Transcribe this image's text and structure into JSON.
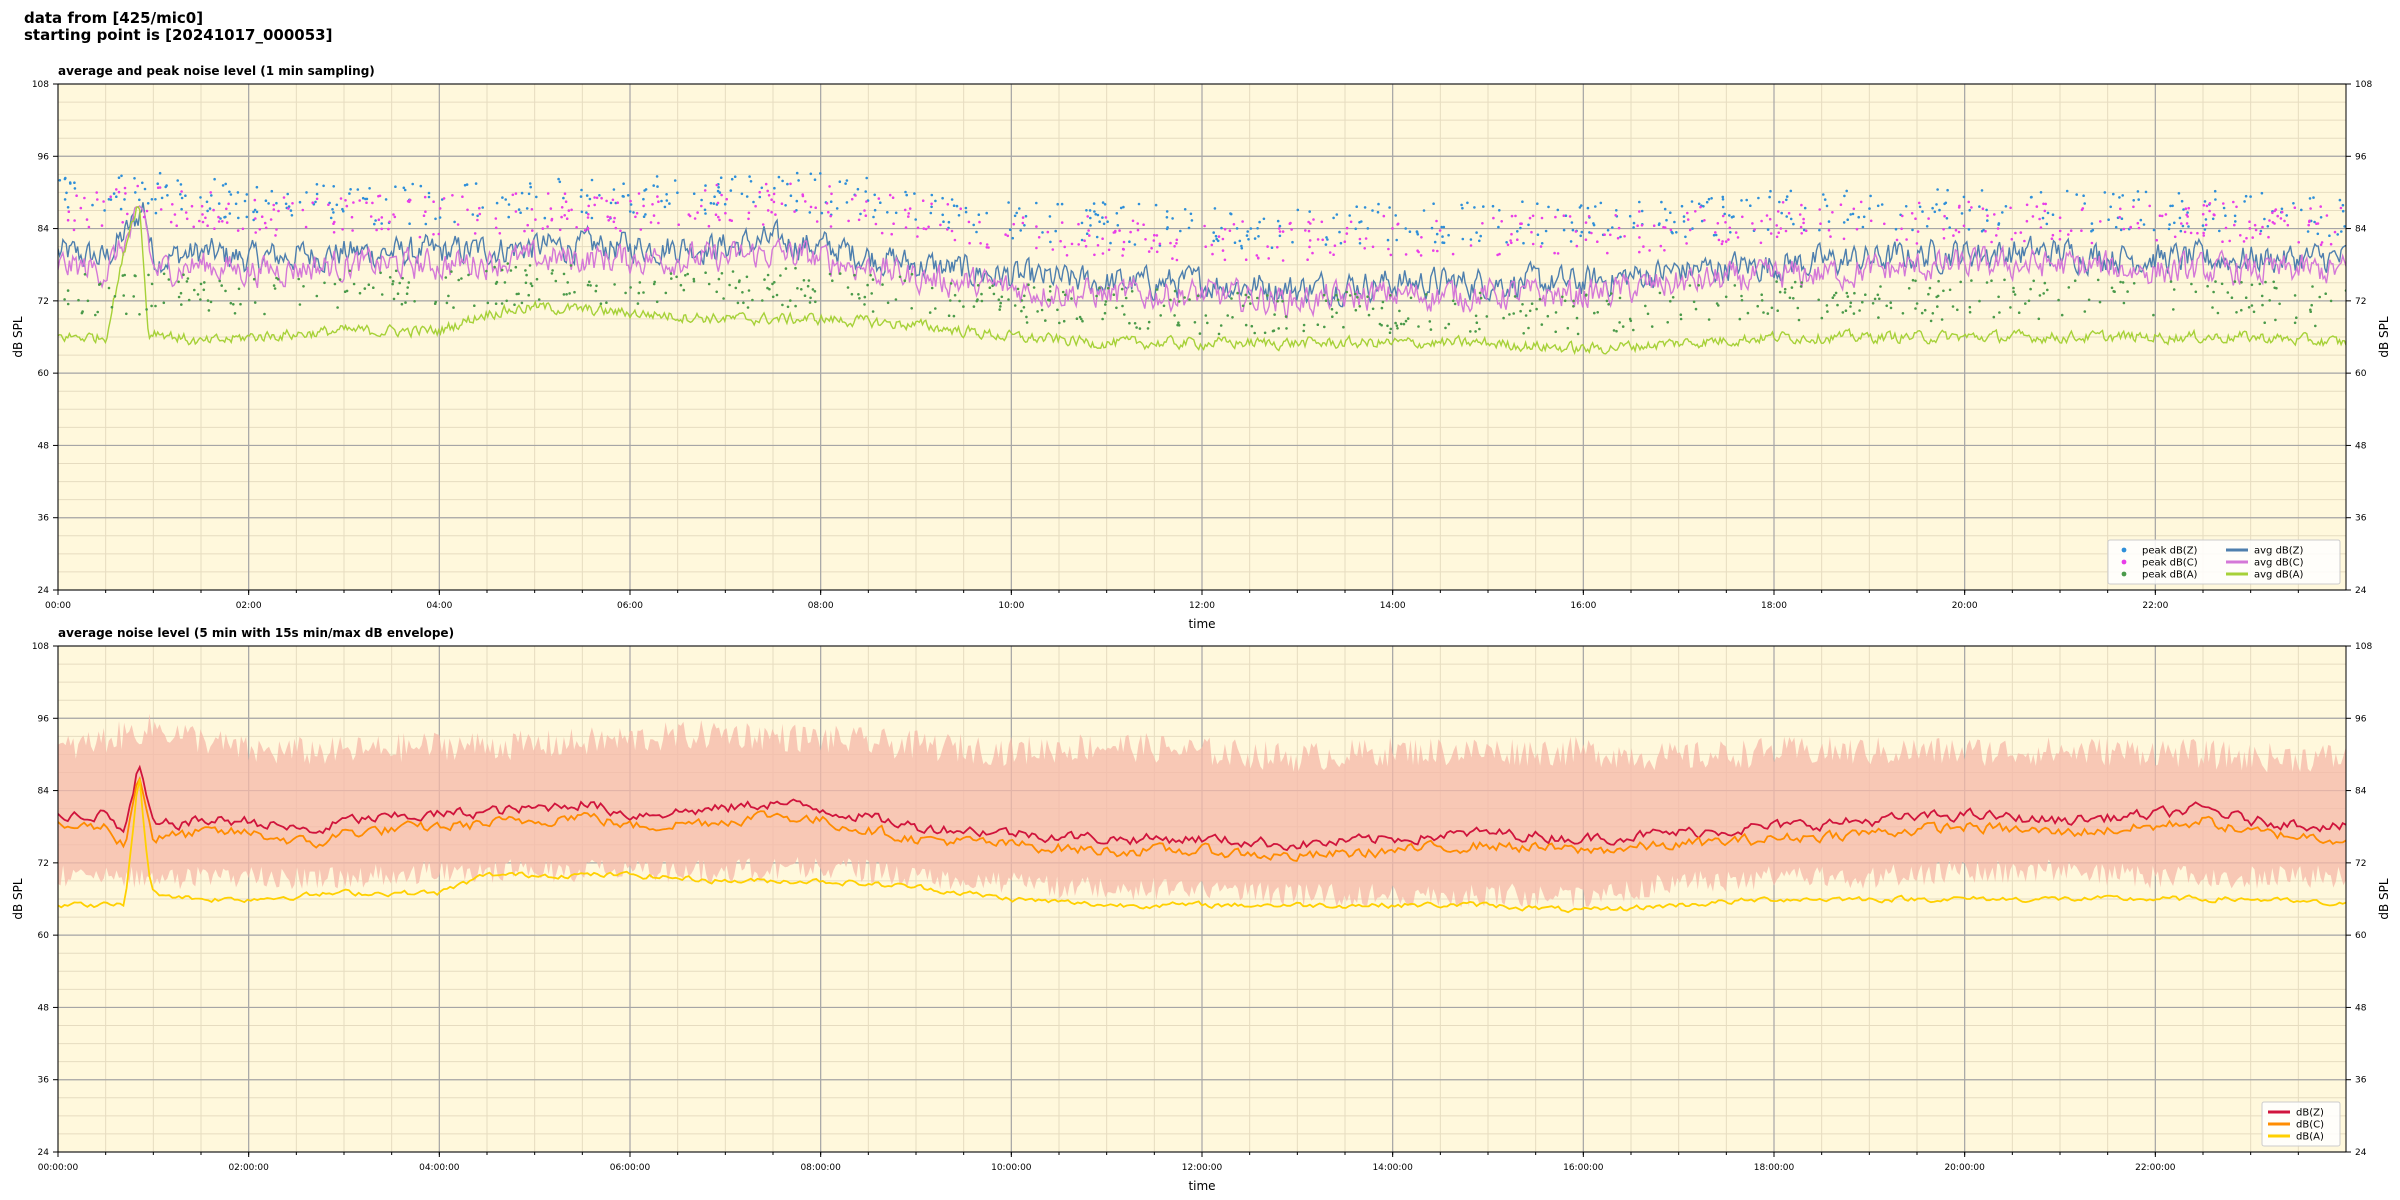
{
  "header": {
    "line1": "data from [425/mic0]",
    "line2": "starting point is [20241017_000053]"
  },
  "colors": {
    "plot_bg": "#fff8dc",
    "grid_major": "#a6a6a6",
    "grid_minor": "#e6dcc0",
    "peak_z": "#2e8fd9",
    "peak_c": "#e83ee8",
    "peak_a": "#4a9a4a",
    "avg_z": "#4e7fae",
    "avg_c": "#d478d8",
    "avg_a": "#a6d138",
    "line_z": "#d0143c",
    "line_c": "#ff8c00",
    "line_a": "#ffd000",
    "envelope": "#f6b8a8"
  },
  "chart_data": [
    {
      "type": "line",
      "title": "average and peak noise level (1 min sampling)",
      "xlabel": "time",
      "ylabel": "dB SPL",
      "ylabel_right": "dB SPL",
      "x_unit": "hours since 00:00",
      "xlim": [
        0,
        24
      ],
      "ylim": [
        24,
        108
      ],
      "yticks": [
        24,
        36,
        48,
        60,
        72,
        84,
        96,
        108
      ],
      "xticks": [
        0,
        2,
        4,
        6,
        8,
        10,
        12,
        14,
        16,
        18,
        20,
        22
      ],
      "xtick_labels": [
        "00:00",
        "02:00",
        "04:00",
        "06:00",
        "08:00",
        "10:00",
        "12:00",
        "14:00",
        "16:00",
        "18:00",
        "20:00",
        "22:00"
      ],
      "grid": true,
      "legend_position": "bottom-right",
      "legend": [
        {
          "label": "peak dB(Z)",
          "kind": "dot",
          "color_key": "peak_z"
        },
        {
          "label": "avg dB(Z)",
          "kind": "line",
          "color_key": "avg_z"
        },
        {
          "label": "peak dB(C)",
          "kind": "dot",
          "color_key": "peak_c"
        },
        {
          "label": "avg dB(C)",
          "kind": "line",
          "color_key": "avg_c"
        },
        {
          "label": "peak dB(A)",
          "kind": "dot",
          "color_key": "peak_a"
        },
        {
          "label": "avg dB(A)",
          "kind": "line",
          "color_key": "avg_a"
        }
      ],
      "series": [
        {
          "name": "avg dB(Z)",
          "kind": "line",
          "color_key": "avg_z",
          "x": [
            0,
            0.5,
            0.8,
            0.9,
            1,
            1.5,
            2,
            3,
            4,
            5,
            6,
            7,
            7.5,
            8,
            9,
            10,
            11,
            12,
            13,
            14,
            15,
            16,
            17,
            18,
            19,
            20,
            21,
            22,
            23,
            24
          ],
          "y": [
            80,
            79,
            85,
            88,
            79,
            80,
            79,
            80,
            80,
            81,
            81,
            81,
            82,
            81,
            78,
            76,
            75,
            75,
            74,
            75,
            75,
            75,
            77,
            78,
            79,
            80,
            80,
            79,
            79,
            79
          ]
        },
        {
          "name": "avg dB(C)",
          "kind": "line",
          "color_key": "avg_c",
          "x": [
            0,
            0.5,
            0.8,
            0.9,
            1,
            1.5,
            2,
            3,
            4,
            5,
            6,
            7,
            7.5,
            8,
            9,
            10,
            11,
            12,
            13,
            14,
            15,
            16,
            17,
            18,
            19,
            20,
            21,
            22,
            23,
            24
          ],
          "y": [
            78,
            77,
            84,
            87,
            77,
            78,
            77,
            78,
            78,
            79,
            79,
            79,
            80,
            79,
            76,
            74,
            73,
            73,
            72,
            73,
            73,
            73,
            75,
            76,
            77,
            78,
            78,
            77,
            77,
            77
          ]
        },
        {
          "name": "avg dB(A)",
          "kind": "line",
          "color_key": "avg_a",
          "x": [
            0,
            0.5,
            0.75,
            0.85,
            0.95,
            1.0,
            1.5,
            2,
            3,
            4,
            4.5,
            5,
            6,
            7,
            8,
            9,
            10,
            11,
            12,
            13,
            14,
            15,
            16,
            17,
            18,
            19,
            20,
            21,
            22,
            23,
            24
          ],
          "y": [
            66,
            66,
            84,
            89,
            66,
            67,
            65,
            66,
            67,
            67,
            70,
            71,
            70,
            69,
            69,
            68,
            66,
            65,
            65,
            65,
            65,
            65,
            64,
            65,
            66,
            66,
            66,
            66,
            66,
            66,
            65
          ]
        },
        {
          "name": "peak dB(Z)",
          "kind": "dots",
          "color_key": "peak_z",
          "x": [
            0,
            1,
            2,
            3,
            4,
            5,
            6,
            7,
            8,
            9,
            10,
            11,
            12,
            13,
            14,
            15,
            16,
            17,
            18,
            19,
            20,
            21,
            22,
            23,
            24
          ],
          "y": [
            89,
            90,
            88,
            88,
            88,
            89,
            89,
            90,
            90,
            88,
            85,
            85,
            84,
            84,
            85,
            85,
            85,
            86,
            87,
            87,
            87,
            87,
            87,
            87,
            86
          ]
        },
        {
          "name": "peak dB(C)",
          "kind": "dots",
          "color_key": "peak_c",
          "x": [
            0,
            1,
            2,
            3,
            4,
            5,
            6,
            7,
            8,
            9,
            10,
            11,
            12,
            13,
            14,
            15,
            16,
            17,
            18,
            19,
            20,
            21,
            22,
            23,
            24
          ],
          "y": [
            87,
            88,
            86,
            86,
            86,
            87,
            87,
            88,
            88,
            86,
            83,
            83,
            82,
            82,
            83,
            83,
            83,
            84,
            85,
            85,
            85,
            85,
            85,
            85,
            84
          ]
        },
        {
          "name": "peak dB(A)",
          "kind": "dots",
          "color_key": "peak_a",
          "x": [
            0,
            1,
            2,
            3,
            4,
            5,
            6,
            7,
            8,
            9,
            10,
            11,
            12,
            13,
            14,
            15,
            16,
            17,
            18,
            19,
            20,
            21,
            22,
            23,
            24
          ],
          "y": [
            73,
            73,
            73,
            74,
            74,
            75,
            75,
            74,
            74,
            73,
            72,
            71,
            70,
            70,
            70,
            70,
            70,
            71,
            72,
            72,
            72,
            72,
            72,
            72,
            71
          ]
        }
      ]
    },
    {
      "type": "line",
      "title": "average noise level (5 min with 15s min/max dB envelope)",
      "xlabel": "time",
      "ylabel": "dB SPL",
      "ylabel_right": "dB SPL",
      "x_unit": "hours since 00:00",
      "xlim": [
        0,
        24
      ],
      "ylim": [
        24,
        108
      ],
      "yticks": [
        24,
        36,
        48,
        60,
        72,
        84,
        96,
        108
      ],
      "xticks": [
        0,
        2,
        4,
        6,
        8,
        10,
        12,
        14,
        16,
        18,
        20,
        22
      ],
      "xtick_labels": [
        "00:00:00",
        "02:00:00",
        "04:00:00",
        "06:00:00",
        "08:00:00",
        "10:00:00",
        "12:00:00",
        "14:00:00",
        "16:00:00",
        "18:00:00",
        "20:00:00",
        "22:00:00"
      ],
      "grid": true,
      "legend_position": "bottom-right",
      "legend": [
        {
          "label": "dB(Z)",
          "kind": "line",
          "color_key": "line_z"
        },
        {
          "label": "dB(C)",
          "kind": "line",
          "color_key": "line_c"
        },
        {
          "label": "dB(A)",
          "kind": "line",
          "color_key": "line_a"
        }
      ],
      "envelope": {
        "color_key": "envelope",
        "x": [
          0,
          1,
          2,
          3,
          4,
          5,
          6,
          7,
          8,
          9,
          10,
          11,
          12,
          13,
          14,
          15,
          16,
          17,
          18,
          19,
          20,
          21,
          22,
          23,
          24
        ],
        "low": [
          70,
          70,
          70,
          70,
          71,
          71,
          71,
          71,
          72,
          70,
          69,
          68,
          68,
          67,
          67,
          67,
          67,
          69,
          70,
          70,
          71,
          71,
          70,
          70,
          70
        ],
        "high": [
          90,
          94,
          90,
          90,
          91,
          91,
          92,
          93,
          92,
          91,
          90,
          91,
          90,
          89,
          90,
          90,
          90,
          89,
          90,
          90,
          90,
          90,
          90,
          89,
          89
        ]
      },
      "series": [
        {
          "name": "dB(Z)",
          "kind": "line",
          "color_key": "line_z",
          "x": [
            0,
            0.5,
            0.7,
            0.85,
            1,
            1.5,
            2,
            2.7,
            3,
            4,
            5,
            5.5,
            6,
            7,
            7.5,
            8,
            9,
            10,
            11,
            12,
            13,
            14,
            15,
            16,
            17,
            18,
            19,
            20,
            21,
            22,
            22.5,
            23,
            24
          ],
          "y": [
            80,
            80,
            77,
            88,
            78,
            79,
            79,
            77,
            79,
            80,
            81,
            82,
            80,
            81,
            82,
            81,
            78,
            77,
            76,
            76,
            75,
            76,
            77,
            76,
            77,
            78,
            79,
            80,
            79,
            80,
            81,
            79,
            78
          ]
        },
        {
          "name": "dB(C)",
          "kind": "line",
          "color_key": "line_c",
          "x": [
            0,
            0.5,
            0.7,
            0.85,
            1,
            1.5,
            2,
            2.7,
            3,
            4,
            5,
            5.5,
            6,
            7,
            7.5,
            8,
            9,
            10,
            11,
            12,
            13,
            14,
            15,
            16,
            17,
            18,
            19,
            20,
            21,
            22,
            22.5,
            23,
            24
          ],
          "y": [
            78,
            78,
            75,
            87,
            76,
            77,
            77,
            75,
            77,
            78,
            79,
            80,
            78,
            79,
            80,
            79,
            76,
            75,
            74,
            74,
            73,
            74,
            75,
            74,
            75,
            76,
            77,
            78,
            77,
            78,
            79,
            77,
            76
          ]
        },
        {
          "name": "dB(A)",
          "kind": "line",
          "color_key": "line_a",
          "x": [
            0,
            0.5,
            0.7,
            0.85,
            0.95,
            1,
            1.5,
            2,
            3,
            4,
            4.5,
            5,
            6,
            7,
            8,
            9,
            10,
            11,
            12,
            13,
            14,
            15,
            16,
            17,
            18,
            19,
            20,
            21,
            22,
            23,
            24
          ],
          "y": [
            65,
            65,
            65,
            87,
            70,
            67,
            66,
            66,
            67,
            67,
            70,
            70,
            70,
            69,
            69,
            68,
            66,
            65,
            65,
            65,
            65,
            65,
            64,
            65,
            66,
            66,
            66,
            66,
            66,
            66,
            65
          ]
        }
      ]
    }
  ]
}
